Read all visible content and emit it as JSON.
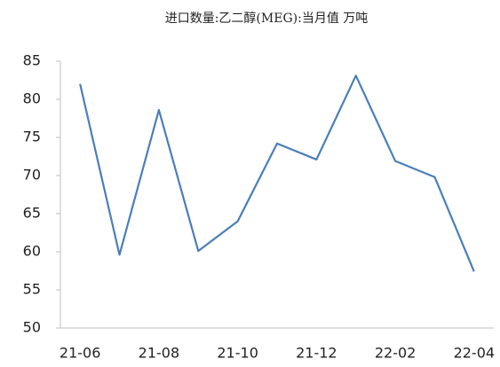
{
  "chart_data": {
    "type": "line",
    "title": "进口数量:乙二醇(MEG):当月值 万吨",
    "categories": [
      "21-06",
      null,
      "21-08",
      null,
      "21-10",
      null,
      "21-12",
      null,
      "22-02",
      null,
      "22-04"
    ],
    "series": [
      {
        "name": "进口数量:乙二醇(MEG):当月值",
        "color": "#4a7ebb",
        "values": [
          82,
          59.6,
          78.6,
          60.1,
          64,
          74.2,
          72.1,
          83.1,
          71.9,
          69.8,
          57.4
        ]
      }
    ],
    "ylim": [
      50,
      85
    ],
    "yticks": [
      50,
      55,
      60,
      65,
      70,
      75,
      80,
      85
    ],
    "grid": false
  }
}
